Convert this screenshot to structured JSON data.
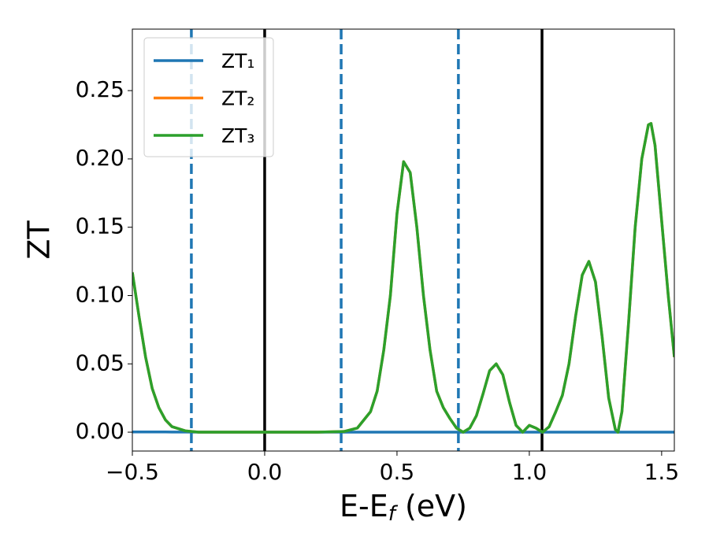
{
  "chart_data": {
    "type": "line",
    "xlabel": [
      "E-E",
      "f",
      " (eV)"
    ],
    "ylabel": "ZT",
    "x": [
      -0.5,
      -0.475,
      -0.45,
      -0.425,
      -0.4,
      -0.375,
      -0.35,
      -0.3,
      -0.25,
      -0.2,
      -0.1,
      0,
      0.1,
      0.2,
      0.3,
      0.35,
      0.4,
      0.425,
      0.45,
      0.475,
      0.5,
      0.525,
      0.55,
      0.575,
      0.6,
      0.625,
      0.65,
      0.675,
      0.7,
      0.725,
      0.75,
      0.775,
      0.8,
      0.825,
      0.85,
      0.875,
      0.9,
      0.925,
      0.95,
      0.975,
      1.0,
      1.025,
      1.05,
      1.075,
      1.1,
      1.125,
      1.15,
      1.175,
      1.2,
      1.225,
      1.25,
      1.275,
      1.3,
      1.325,
      1.335,
      1.35,
      1.375,
      1.4,
      1.425,
      1.45,
      1.46,
      1.475,
      1.5,
      1.525,
      1.548
    ],
    "series": [
      {
        "name": "ZT₁",
        "color": "#1f77b4",
        "values": [
          0.0002,
          0.0002,
          0.0002,
          0.0002,
          0.0002,
          0.0002,
          0.0001,
          0.0001,
          0,
          0,
          0,
          0,
          0,
          0,
          0,
          0,
          0,
          0,
          0,
          0,
          0,
          0,
          0,
          0,
          0,
          0,
          0,
          0,
          0,
          0,
          0,
          0,
          0,
          0,
          0,
          0,
          0,
          0,
          0,
          0,
          0,
          0,
          0,
          0,
          0,
          0,
          0,
          0,
          0,
          0,
          0,
          0,
          0,
          0,
          0,
          0,
          0,
          0,
          0,
          0,
          0,
          0,
          0,
          0,
          0
        ]
      },
      {
        "name": "ZT₂",
        "color": "#ff7f0e",
        "values": [
          0.117,
          0.085,
          0.055,
          0.032,
          0.018,
          0.009,
          0.004,
          0.001,
          0,
          0,
          0,
          0,
          0,
          0,
          0.0005,
          0.003,
          0.015,
          0.03,
          0.06,
          0.1,
          0.16,
          0.198,
          0.19,
          0.15,
          0.1,
          0.06,
          0.03,
          0.018,
          0.01,
          0.003,
          0,
          0.003,
          0.012,
          0.028,
          0.045,
          0.05,
          0.042,
          0.022,
          0.005,
          0,
          0.005,
          0.003,
          0,
          0.004,
          0.015,
          0.027,
          0.05,
          0.085,
          0.115,
          0.125,
          0.11,
          0.07,
          0.025,
          0.002,
          0,
          0.015,
          0.08,
          0.15,
          0.2,
          0.225,
          0.226,
          0.21,
          0.155,
          0.1,
          0.055
        ]
      },
      {
        "name": "ZT₃",
        "color": "#2ca02c",
        "values": [
          0.117,
          0.085,
          0.055,
          0.032,
          0.018,
          0.009,
          0.004,
          0.001,
          0,
          0,
          0,
          0,
          0,
          0,
          0.0005,
          0.003,
          0.015,
          0.03,
          0.06,
          0.1,
          0.16,
          0.198,
          0.19,
          0.15,
          0.1,
          0.06,
          0.03,
          0.018,
          0.01,
          0.003,
          0,
          0.003,
          0.012,
          0.028,
          0.045,
          0.05,
          0.042,
          0.022,
          0.005,
          0,
          0.005,
          0.003,
          0,
          0.004,
          0.015,
          0.027,
          0.05,
          0.085,
          0.115,
          0.125,
          0.11,
          0.07,
          0.025,
          0.002,
          0,
          0.015,
          0.08,
          0.15,
          0.2,
          0.225,
          0.226,
          0.21,
          0.155,
          0.1,
          0.055
        ]
      }
    ],
    "vlines": [
      {
        "x": -0.277,
        "color": "#1f77b4",
        "dashed": true
      },
      {
        "x": 0,
        "color": "#000000",
        "dashed": false
      },
      {
        "x": 0.289,
        "color": "#1f77b4",
        "dashed": true
      },
      {
        "x": 0.732,
        "color": "#1f77b4",
        "dashed": true
      },
      {
        "x": 1.048,
        "color": "#000000",
        "dashed": false
      }
    ],
    "xlim": [
      -0.5,
      1.548
    ],
    "ylim": [
      -0.0138,
      0.295
    ],
    "xticks": [
      {
        "value": -0.5,
        "label": "−0.5"
      },
      {
        "value": 0,
        "label": "0.0"
      },
      0.5,
      {
        "value": 1,
        "label": "1.0"
      },
      1.5
    ],
    "yticks": [
      {
        "value": 0,
        "label": "0.00"
      },
      {
        "value": 0.05,
        "label": "0.05"
      },
      {
        "value": 0.1,
        "label": "0.10"
      },
      {
        "value": 0.15,
        "label": "0.15"
      },
      {
        "value": 0.2,
        "label": "0.20"
      },
      {
        "value": 0.25,
        "label": "0.25"
      }
    ],
    "legend": "upper left",
    "grid": false
  }
}
